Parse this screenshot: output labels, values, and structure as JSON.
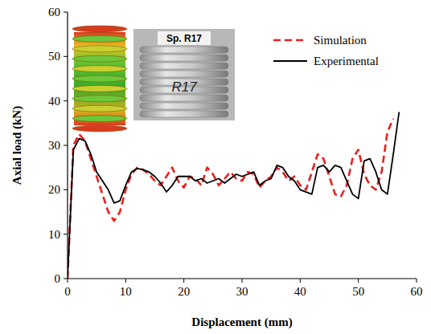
{
  "chart_data": {
    "type": "line",
    "x_label": "Displacement (mm)",
    "y_label": "Axial load (kN)",
    "annotations": [
      "Sp. R17",
      "R17"
    ],
    "x": [
      0,
      1,
      2,
      3,
      4,
      5,
      6,
      7,
      8,
      9,
      10,
      11,
      12,
      13,
      14,
      15,
      16,
      17,
      18,
      19,
      20,
      21,
      22,
      23,
      24,
      25,
      26,
      27,
      28,
      29,
      30,
      31,
      32,
      33,
      34,
      35,
      36,
      37,
      38,
      39,
      40,
      41,
      42,
      43,
      44,
      45,
      46,
      47,
      48,
      49,
      50,
      51,
      52,
      53,
      54,
      55,
      56,
      57
    ],
    "series": [
      {
        "name": "Simulation",
        "color": "#e8201e",
        "line_style": "dashed",
        "values": [
          0,
          30,
          32.5,
          31,
          27,
          23,
          19,
          15,
          13,
          15,
          20,
          23.5,
          25,
          24.5,
          23.5,
          22,
          21,
          23,
          25,
          22,
          20.5,
          23,
          22.5,
          21,
          25,
          23.5,
          21,
          22.5,
          24,
          22.5,
          22,
          24,
          23.5,
          20.5,
          22,
          23,
          25,
          24,
          22,
          23,
          21,
          20,
          24,
          28,
          27,
          23,
          19,
          18.5,
          21,
          27,
          29,
          23.5,
          21,
          20,
          24,
          33,
          36,
          null
        ]
      },
      {
        "name": "Experimental",
        "color": "#000000",
        "line_style": "solid",
        "values": [
          0,
          29,
          31.5,
          31,
          28,
          24,
          22,
          20,
          17,
          17.5,
          21,
          24,
          24.8,
          24.5,
          24,
          23,
          21.5,
          19.5,
          21,
          23,
          23,
          23,
          22,
          22.5,
          21.5,
          22,
          22.5,
          21.5,
          22.5,
          23.5,
          23,
          23.5,
          24,
          21,
          22,
          22.5,
          25.5,
          25,
          23,
          22,
          20,
          19.5,
          19,
          25,
          25.5,
          24,
          25.5,
          25,
          22,
          19,
          18,
          26.5,
          27,
          24,
          20,
          19,
          28,
          37.5
        ]
      }
    ],
    "xlim": [
      0,
      60
    ],
    "ylim": [
      0,
      60
    ],
    "xticks": [
      0,
      10,
      20,
      30,
      40,
      50,
      60
    ],
    "yticks": [
      0,
      10,
      20,
      30,
      40,
      50,
      60
    ],
    "legend": "upper right",
    "grid": false
  }
}
